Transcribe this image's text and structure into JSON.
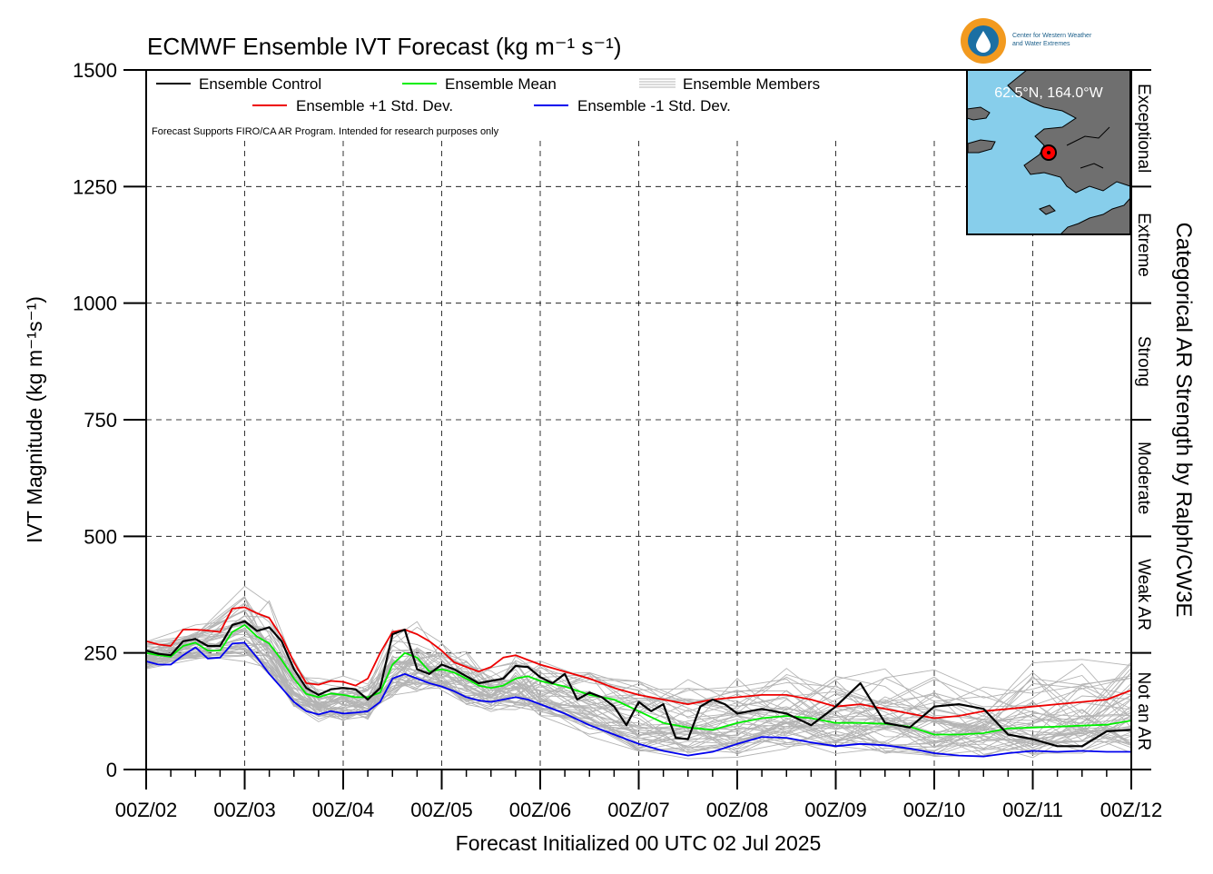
{
  "title": "ECMWF Ensemble IVT Forecast (kg m⁻¹ s⁻¹)",
  "note": "Forecast Supports FIRO/CA AR Program. Intended for research purposes only",
  "logo": {
    "line1": "Center for Western Weather",
    "line2": "and Water Extremes",
    "colors": {
      "orange": "#f29a1f",
      "blue": "#1b6fa3"
    }
  },
  "inset": {
    "label": "62.5°N, 164.0°W",
    "ocean_color": "#87ceeb",
    "land_color": "#6f6f6f",
    "marker_color": "#ff0000"
  },
  "chart_data": {
    "type": "line",
    "xlabel": "Forecast Initialized 00 UTC 02 Jul 2025",
    "ylabel": "IVT Magnitude (kg m⁻¹s⁻¹)",
    "right_label": "Categorical AR Strength by Ralph/CW3E",
    "x_ticks": [
      "00Z/02",
      "00Z/03",
      "00Z/04",
      "00Z/05",
      "00Z/06",
      "00Z/07",
      "00Z/08",
      "00Z/09",
      "00Z/10",
      "00Z/11",
      "00Z/12"
    ],
    "xlim_days": [
      0,
      10
    ],
    "ylim": [
      0,
      1500
    ],
    "y_ticks": [
      0,
      250,
      500,
      750,
      1000,
      1250,
      1500
    ],
    "grid": true,
    "categories": [
      {
        "label": "Not an AR",
        "from": 0,
        "to": 250
      },
      {
        "label": "Weak AR",
        "from": 250,
        "to": 500
      },
      {
        "label": "Moderate",
        "from": 500,
        "to": 750
      },
      {
        "label": "Strong",
        "from": 750,
        "to": 1000
      },
      {
        "label": "Extreme",
        "from": 1000,
        "to": 1250
      },
      {
        "label": "Exceptional",
        "from": 1250,
        "to": 1500
      }
    ],
    "legend": [
      "Ensemble Control",
      "Ensemble Mean",
      "Ensemble Members",
      "Ensemble +1 Std. Dev.",
      "Ensemble -1 Std. Dev."
    ],
    "series": [
      {
        "name": "Ensemble Control",
        "color": "#000000",
        "x": [
          0,
          0.125,
          0.25,
          0.375,
          0.5,
          0.625,
          0.75,
          0.875,
          1,
          1.125,
          1.25,
          1.375,
          1.5,
          1.625,
          1.75,
          1.875,
          2,
          2.125,
          2.25,
          2.375,
          2.5,
          2.625,
          2.75,
          2.875,
          3,
          3.125,
          3.25,
          3.375,
          3.5,
          3.625,
          3.75,
          3.875,
          4,
          4.125,
          4.25,
          4.375,
          4.5,
          4.625,
          4.75,
          4.875,
          5,
          5.125,
          5.25,
          5.375,
          5.5,
          5.625,
          5.75,
          5.875,
          6,
          6.25,
          6.5,
          6.75,
          7,
          7.25,
          7.5,
          7.75,
          8,
          8.25,
          8.5,
          8.75,
          9,
          9.25,
          9.5,
          9.75,
          10
        ],
        "values": [
          255,
          248,
          245,
          275,
          280,
          265,
          265,
          310,
          318,
          297,
          305,
          275,
          215,
          175,
          160,
          172,
          175,
          172,
          150,
          175,
          290,
          300,
          215,
          205,
          225,
          215,
          200,
          185,
          190,
          195,
          222,
          220,
          198,
          185,
          205,
          150,
          165,
          155,
          135,
          95,
          145,
          125,
          140,
          68,
          65,
          135,
          150,
          140,
          120,
          130,
          120,
          95,
          135,
          185,
          100,
          90,
          135,
          140,
          130,
          75,
          65,
          50,
          50,
          82,
          85
        ]
      },
      {
        "name": "Ensemble Mean",
        "color": "#00ee00",
        "x": [
          0,
          0.125,
          0.25,
          0.375,
          0.5,
          0.625,
          0.75,
          0.875,
          1,
          1.125,
          1.25,
          1.375,
          1.5,
          1.625,
          1.75,
          1.875,
          2,
          2.125,
          2.25,
          2.375,
          2.5,
          2.625,
          2.75,
          2.875,
          3,
          3.125,
          3.25,
          3.375,
          3.5,
          3.625,
          3.75,
          3.875,
          4,
          4.25,
          4.5,
          4.75,
          5,
          5.25,
          5.5,
          5.75,
          6,
          6.25,
          6.5,
          6.75,
          7,
          7.25,
          7.5,
          7.75,
          8,
          8.25,
          8.5,
          8.75,
          9,
          9.25,
          9.5,
          9.75,
          10
        ],
        "values": [
          250,
          245,
          242,
          265,
          272,
          255,
          255,
          295,
          310,
          285,
          270,
          235,
          195,
          162,
          155,
          163,
          160,
          155,
          155,
          165,
          225,
          250,
          240,
          210,
          215,
          208,
          195,
          180,
          175,
          180,
          195,
          200,
          190,
          178,
          160,
          150,
          125,
          100,
          90,
          85,
          100,
          110,
          115,
          110,
          100,
          100,
          98,
          92,
          75,
          75,
          78,
          88,
          90,
          92,
          94,
          96,
          105
        ]
      },
      {
        "name": "Ensemble +1 Std. Dev.",
        "color": "#ee0000",
        "x": [
          0,
          0.125,
          0.25,
          0.375,
          0.5,
          0.625,
          0.75,
          0.875,
          1,
          1.125,
          1.25,
          1.375,
          1.5,
          1.625,
          1.75,
          1.875,
          2,
          2.125,
          2.25,
          2.375,
          2.5,
          2.625,
          2.75,
          2.875,
          3,
          3.125,
          3.25,
          3.375,
          3.5,
          3.625,
          3.75,
          3.875,
          4,
          4.25,
          4.5,
          4.75,
          5,
          5.25,
          5.5,
          5.75,
          6,
          6.25,
          6.5,
          6.75,
          7,
          7.25,
          7.5,
          7.75,
          8,
          8.25,
          8.5,
          8.75,
          9,
          9.25,
          9.5,
          9.75,
          10
        ],
        "values": [
          275,
          268,
          265,
          300,
          300,
          298,
          295,
          345,
          348,
          335,
          325,
          285,
          230,
          185,
          182,
          190,
          188,
          180,
          195,
          250,
          295,
          300,
          290,
          275,
          255,
          230,
          220,
          210,
          220,
          240,
          245,
          235,
          225,
          210,
          195,
          175,
          160,
          150,
          140,
          150,
          155,
          160,
          160,
          150,
          135,
          140,
          130,
          120,
          110,
          115,
          125,
          130,
          135,
          140,
          145,
          150,
          170
        ]
      },
      {
        "name": "Ensemble -1 Std. Dev.",
        "color": "#0000ee",
        "x": [
          0,
          0.125,
          0.25,
          0.375,
          0.5,
          0.625,
          0.75,
          0.875,
          1,
          1.125,
          1.25,
          1.375,
          1.5,
          1.625,
          1.75,
          1.875,
          2,
          2.125,
          2.25,
          2.375,
          2.5,
          2.625,
          2.75,
          2.875,
          3,
          3.125,
          3.25,
          3.375,
          3.5,
          3.625,
          3.75,
          3.875,
          4,
          4.25,
          4.5,
          4.75,
          5,
          5.25,
          5.5,
          5.75,
          6,
          6.25,
          6.5,
          6.75,
          7,
          7.25,
          7.5,
          7.75,
          8,
          8.25,
          8.5,
          8.75,
          9,
          9.25,
          9.5,
          9.75,
          10
        ],
        "values": [
          232,
          225,
          225,
          245,
          262,
          238,
          240,
          270,
          272,
          240,
          205,
          175,
          145,
          125,
          118,
          125,
          120,
          122,
          125,
          145,
          195,
          205,
          195,
          185,
          178,
          168,
          155,
          148,
          145,
          150,
          155,
          150,
          140,
          120,
          95,
          75,
          55,
          40,
          30,
          38,
          55,
          70,
          68,
          58,
          50,
          55,
          52,
          45,
          35,
          30,
          28,
          35,
          40,
          38,
          40,
          38,
          38
        ]
      }
    ],
    "members_band": {
      "name": "Ensemble Members",
      "color": "#b4b4b4",
      "count": 50,
      "x": [
        0,
        0.5,
        1,
        1.25,
        1.5,
        1.75,
        2,
        2.25,
        2.5,
        2.75,
        3,
        3.25,
        3.5,
        3.75,
        4,
        4.5,
        5,
        5.5,
        6,
        6.5,
        7,
        7.5,
        8,
        8.5,
        9,
        9.5,
        10
      ],
      "low": [
        215,
        235,
        230,
        190,
        130,
        100,
        100,
        105,
        150,
        165,
        165,
        135,
        120,
        125,
        110,
        70,
        30,
        20,
        25,
        30,
        30,
        25,
        20,
        18,
        20,
        22,
        25
      ],
      "high": [
        290,
        320,
        420,
        380,
        280,
        210,
        210,
        200,
        320,
        330,
        290,
        260,
        250,
        270,
        260,
        270,
        230,
        220,
        220,
        240,
        260,
        250,
        250,
        240,
        250,
        260,
        290
      ]
    }
  }
}
